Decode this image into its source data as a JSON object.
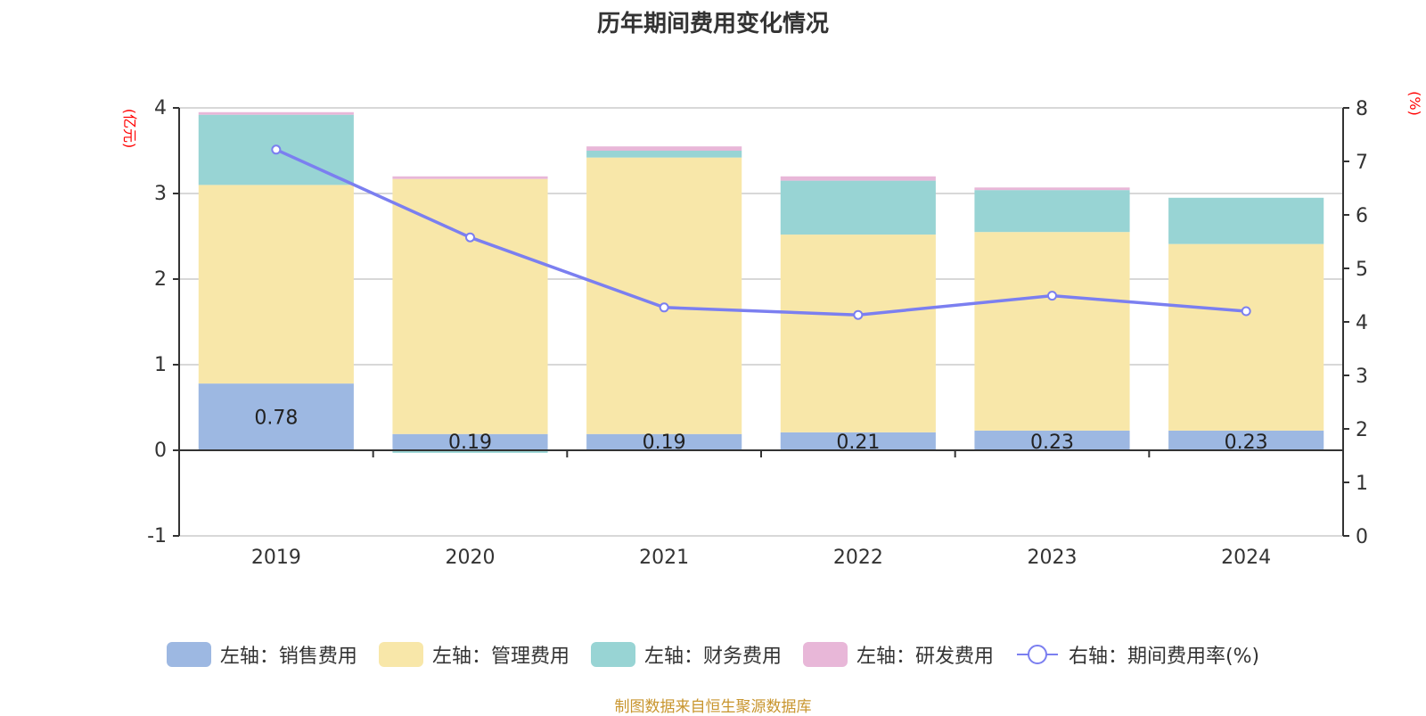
{
  "chart_data": {
    "type": "bar",
    "stacked": true,
    "title": "历年期间费用变化情况",
    "categories": [
      "2019",
      "2020",
      "2021",
      "2022",
      "2023",
      "2024"
    ],
    "left_axis": {
      "label": "(亿元)",
      "ylim": [
        -1,
        4
      ],
      "ticks": [
        "4",
        "3",
        "2",
        "1",
        "0",
        "-1"
      ],
      "tick_values": [
        4,
        3,
        2,
        1,
        0,
        -1
      ]
    },
    "right_axis": {
      "label": "(%)",
      "ylim": [
        0,
        8
      ],
      "ticks": [
        "8",
        "7",
        "6",
        "5",
        "4",
        "3",
        "2",
        "1",
        "0"
      ],
      "tick_values": [
        8,
        7,
        6,
        5,
        4,
        3,
        2,
        1,
        0
      ]
    },
    "series": [
      {
        "name": "左轴：销售费用",
        "axis": "left",
        "color": "#9db8e2",
        "values": [
          0.78,
          0.19,
          0.19,
          0.21,
          0.23,
          0.23
        ],
        "labels": [
          "0.78",
          "0.19",
          "0.19",
          "0.21",
          "0.23",
          "0.23"
        ]
      },
      {
        "name": "左轴：管理费用",
        "axis": "left",
        "color": "#f8e7a9",
        "values": [
          2.32,
          2.98,
          3.23,
          2.31,
          2.32,
          2.18
        ]
      },
      {
        "name": "左轴：财务费用",
        "axis": "left",
        "color": "#98d4d4",
        "values": [
          0.82,
          -0.03,
          0.08,
          0.63,
          0.49,
          0.54
        ]
      },
      {
        "name": "左轴：研发费用",
        "axis": "left",
        "color": "#e8b7d8",
        "values": [
          0.03,
          0.03,
          0.05,
          0.05,
          0.03,
          0.0
        ]
      },
      {
        "name": "右轴：期间费用率(%)",
        "axis": "right",
        "type": "line",
        "color": "#7b7ff0",
        "values": [
          7.22,
          5.58,
          4.27,
          4.13,
          4.49,
          4.2
        ]
      }
    ],
    "grid": true,
    "legend_position": "bottom"
  },
  "footer": "制图数据来自恒生聚源数据库"
}
